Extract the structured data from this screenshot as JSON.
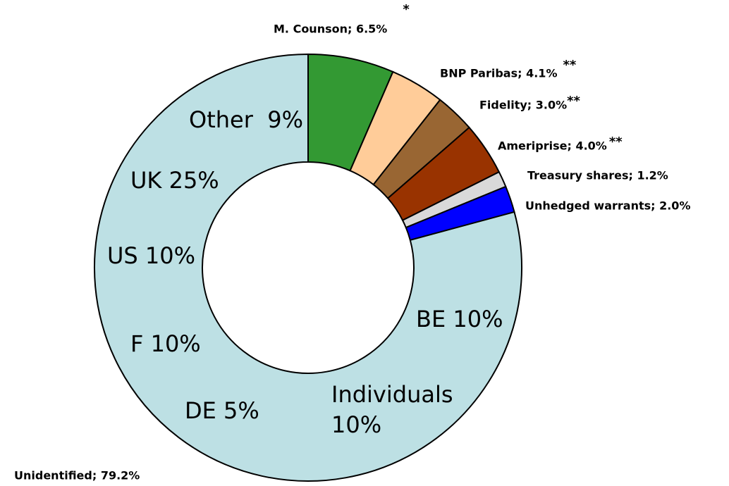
{
  "chart_data": {
    "type": "pie",
    "labels": [
      "M. Counson; 6.5%",
      "BNP Paribas; 4.1%",
      "Fidelity; 3.0%",
      "Ameriprise; 4.0%",
      "Treasury shares; 1.2%",
      "Unhedged warrants; 2.0%",
      "Unidentified; 79.2%"
    ],
    "values": [
      6.5,
      4.1,
      3.0,
      4.0,
      1.2,
      2.0,
      79.2
    ],
    "colors": [
      "#339933",
      "#ffcc99",
      "#996633",
      "#993300",
      "#d9d9d9",
      "#0000ff",
      "#bde0e4"
    ],
    "markers": [
      "*",
      "**",
      "**",
      "**",
      null,
      null,
      null
    ],
    "annotations": [
      "Other  9%",
      "UK 25%",
      "US 10%",
      "F 10%",
      "DE 5%",
      "BE 10%",
      "Individuals",
      "10%"
    ]
  }
}
